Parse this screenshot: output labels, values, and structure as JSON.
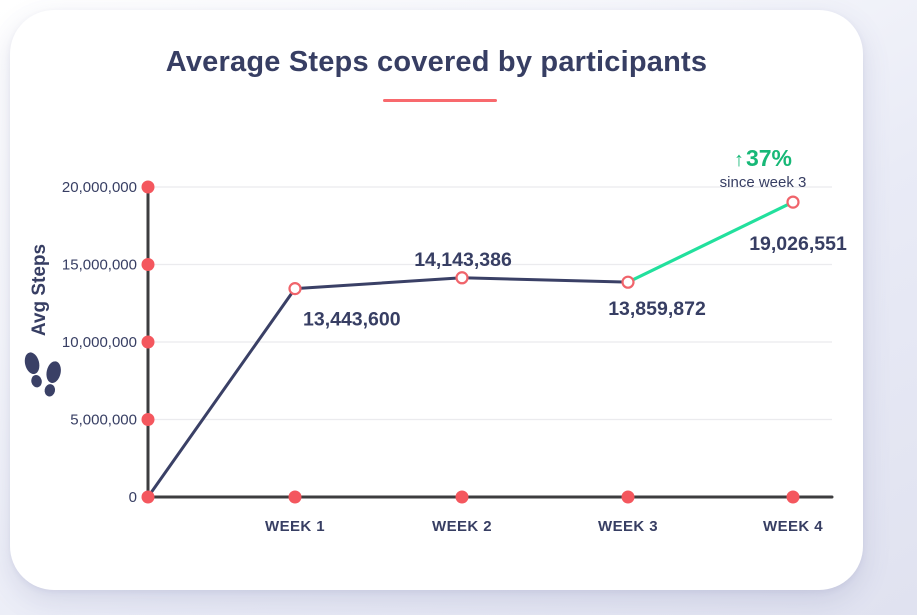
{
  "card": {
    "title": "Average Steps covered by participants"
  },
  "chart_data": {
    "type": "line",
    "title": "Average Steps covered by participants",
    "ylabel": "Avg Steps",
    "xlabel": "",
    "categories": [
      "WEEK 1",
      "WEEK 2",
      "WEEK 3",
      "WEEK 4"
    ],
    "values": [
      13443600,
      14143386,
      13859872,
      19026551
    ],
    "value_labels": [
      "13,443,600",
      "14,143,386",
      "13,859,872",
      "19,026,551"
    ],
    "ylim": [
      0,
      20000000
    ],
    "y_ticks": [
      0,
      5000000,
      10000000,
      15000000,
      20000000
    ],
    "y_tick_labels": [
      "0",
      "5,000,000",
      "10,000,000",
      "15,000,000",
      "20,000,000"
    ],
    "grid": "horizontal",
    "line_starts_at_origin": true,
    "highlight_segment": "WEEK 3 to WEEK 4",
    "annotation": {
      "arrow": "↑",
      "percent": "37%",
      "caption": "since week 3"
    }
  },
  "icons": {
    "y_axis_icon": "footprints-icon",
    "annotation_icon": "up-arrow-icon"
  },
  "colors": {
    "navy_text": "#373e63",
    "line_navy": "#3a4066",
    "line_mint": "#22e09d",
    "green_text": "#17b877",
    "coral_dot": "#f4575e",
    "marker_stroke": "#f0646b",
    "underline_coral": "#f8696d",
    "axis_dark": "#3d3d3f",
    "gridline": "#ebebee",
    "card_bg": "#ffffff",
    "page_bg": "#e3e5f2"
  }
}
